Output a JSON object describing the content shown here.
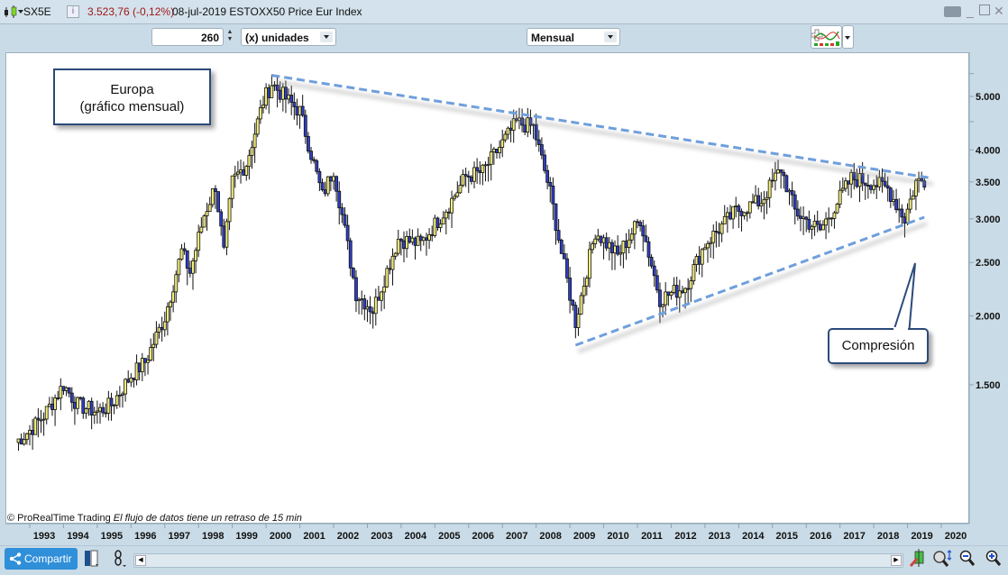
{
  "header": {
    "symbol": "SX5E",
    "price_change": "3.523,76 (-0,12%)",
    "description": "08-jul-2019 ESTOXX50 Price Eur Index",
    "info_icon": "info-icon",
    "window_controls": [
      "keyboard-icon",
      "minimize-icon",
      "maximize-icon",
      "close-icon"
    ]
  },
  "toolbar": {
    "units_value": "260",
    "units_select": "(x) unidades",
    "period_select": "Mensual",
    "indicators_icon": "indicators-icon"
  },
  "annotations": {
    "europa_line1": "Europa",
    "europa_line2": "(gráfico mensual)",
    "compresion": "Compresión"
  },
  "footer": {
    "copyright": "© ProRealTime Trading",
    "delay_notice": "El flujo de datos tiene un retraso de 15 min",
    "share_label": "Compartir"
  },
  "colors": {
    "up_candle": "#f5f07a",
    "down_candle": "#2d3fc8",
    "trendline": "#6f9fdc",
    "price_negative": "#a01818",
    "share_button": "#2f8fd9"
  },
  "chart_data": {
    "type": "candlestick",
    "title": "ESTOXX50 Price Eur Index (SX5E) — Monthly",
    "scale": "log",
    "ylim": [
      1050,
      6100
    ],
    "yticks": [
      1500,
      2000,
      2500,
      3000,
      3500,
      4000,
      5000
    ],
    "ytick_labels": [
      "1.500",
      "2.000",
      "2.500",
      "3.000",
      "3.500",
      "4.000",
      "5.000"
    ],
    "xticks": [
      "1993",
      "1994",
      "1995",
      "1996",
      "1997",
      "1998",
      "1999",
      "2000",
      "2001",
      "2002",
      "2003",
      "2004",
      "2005",
      "2006",
      "2007",
      "2008",
      "2009",
      "2010",
      "2011",
      "2012",
      "2013",
      "2014",
      "2015",
      "2016",
      "2017",
      "2018",
      "2019",
      "2020"
    ],
    "last_close": 3523.76,
    "change_pct": -0.12,
    "trendlines": [
      {
        "name": "upper-resistance",
        "from": [
          "2000-03",
          5460
        ],
        "to": [
          "2019-09",
          3560
        ]
      },
      {
        "name": "lower-support",
        "from": [
          "2009-03",
          1770
        ],
        "to": [
          "2019-07",
          3020
        ]
      }
    ],
    "annotations": [
      "Europa (gráfico mensual)",
      "Compresión"
    ],
    "monthly_close_anchors": [
      [
        "1992-08",
        1180
      ],
      [
        "1993-01",
        1240
      ],
      [
        "1993-06",
        1320
      ],
      [
        "1994-01",
        1500
      ],
      [
        "1994-06",
        1380
      ],
      [
        "1995-01",
        1340
      ],
      [
        "1995-06",
        1380
      ],
      [
        "1996-01",
        1560
      ],
      [
        "1996-06",
        1650
      ],
      [
        "1997-01",
        1990
      ],
      [
        "1997-07",
        2620
      ],
      [
        "1997-10",
        2400
      ],
      [
        "1998-03",
        3050
      ],
      [
        "1998-07",
        3450
      ],
      [
        "1998-10",
        2600
      ],
      [
        "1999-01",
        3500
      ],
      [
        "1999-06",
        3780
      ],
      [
        "1999-12",
        4900
      ],
      [
        "2000-03",
        5280
      ],
      [
        "2000-09",
        4900
      ],
      [
        "2001-01",
        4700
      ],
      [
        "2001-09",
        3300
      ],
      [
        "2002-01",
        3700
      ],
      [
        "2002-09",
        2200
      ],
      [
        "2003-03",
        2050
      ],
      [
        "2003-12",
        2760
      ],
      [
        "2004-08",
        2700
      ],
      [
        "2005-06",
        3180
      ],
      [
        "2005-12",
        3580
      ],
      [
        "2006-06",
        3650
      ],
      [
        "2007-06",
        4480
      ],
      [
        "2007-12",
        4400
      ],
      [
        "2008-06",
        3350
      ],
      [
        "2008-10",
        2600
      ],
      [
        "2009-03",
        1950
      ],
      [
        "2009-10",
        2850
      ],
      [
        "2010-06",
        2570
      ],
      [
        "2011-02",
        3000
      ],
      [
        "2011-09",
        2150
      ],
      [
        "2012-06",
        2260
      ],
      [
        "2013-01",
        2700
      ],
      [
        "2013-12",
        3100
      ],
      [
        "2014-09",
        3230
      ],
      [
        "2015-04",
        3700
      ],
      [
        "2015-09",
        3100
      ],
      [
        "2016-02",
        2950
      ],
      [
        "2016-06",
        2860
      ],
      [
        "2017-05",
        3550
      ],
      [
        "2017-12",
        3500
      ],
      [
        "2018-06",
        3400
      ],
      [
        "2018-12",
        3000
      ],
      [
        "2019-04",
        3500
      ],
      [
        "2019-07",
        3524
      ]
    ]
  }
}
